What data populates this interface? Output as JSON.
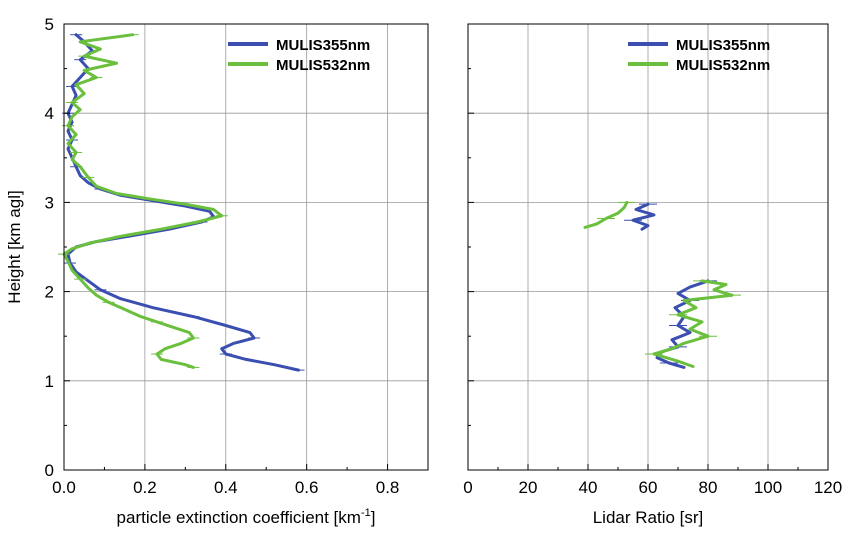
{
  "chart_data": [
    {
      "type": "line",
      "xlabel": "particle extinction coefficient [km",
      "xlabel_sup": "-1",
      "xlabel_end": "]",
      "ylabel": "Height [km agl]",
      "xlim": [
        0,
        0.9
      ],
      "ylim": [
        0,
        5
      ],
      "xticks": [
        "0.0",
        "0.2",
        "0.4",
        "0.6",
        "0.8"
      ],
      "xtick_values": [
        0,
        0.2,
        0.4,
        0.6,
        0.8
      ],
      "yticks": [
        "0",
        "1",
        "2",
        "3",
        "4",
        "5"
      ],
      "ytick_values": [
        0,
        1,
        2,
        3,
        4,
        5
      ],
      "grid": true,
      "legend_position": "top-right",
      "series": [
        {
          "name": "MULIS355nm",
          "color": "#3a4fb0",
          "points": [
            [
              0.58,
              1.12
            ],
            [
              0.52,
              1.18
            ],
            [
              0.45,
              1.24
            ],
            [
              0.4,
              1.3
            ],
            [
              0.39,
              1.36
            ],
            [
              0.42,
              1.42
            ],
            [
              0.47,
              1.48
            ],
            [
              0.46,
              1.54
            ],
            [
              0.4,
              1.62
            ],
            [
              0.32,
              1.72
            ],
            [
              0.22,
              1.82
            ],
            [
              0.14,
              1.92
            ],
            [
              0.09,
              2.02
            ],
            [
              0.06,
              2.12
            ],
            [
              0.03,
              2.22
            ],
            [
              0.015,
              2.32
            ],
            [
              0.01,
              2.42
            ],
            [
              0.03,
              2.5
            ],
            [
              0.08,
              2.56
            ],
            [
              0.16,
              2.62
            ],
            [
              0.26,
              2.7
            ],
            [
              0.34,
              2.78
            ],
            [
              0.37,
              2.84
            ],
            [
              0.36,
              2.9
            ],
            [
              0.3,
              2.96
            ],
            [
              0.22,
              3.02
            ],
            [
              0.14,
              3.08
            ],
            [
              0.09,
              3.15
            ],
            [
              0.06,
              3.22
            ],
            [
              0.04,
              3.3
            ],
            [
              0.03,
              3.4
            ],
            [
              0.02,
              3.5
            ],
            [
              0.01,
              3.6
            ],
            [
              0.02,
              3.7
            ],
            [
              0.01,
              3.8
            ],
            [
              0.02,
              3.9
            ],
            [
              0.01,
              4.0
            ],
            [
              0.02,
              4.1
            ],
            [
              0.03,
              4.2
            ],
            [
              0.02,
              4.3
            ],
            [
              0.04,
              4.4
            ],
            [
              0.06,
              4.5
            ],
            [
              0.04,
              4.6
            ],
            [
              0.07,
              4.7
            ],
            [
              0.05,
              4.8
            ],
            [
              0.03,
              4.88
            ]
          ]
        },
        {
          "name": "MULIS532nm",
          "color": "#6abf3c",
          "points": [
            [
              0.32,
              1.15
            ],
            [
              0.3,
              1.18
            ],
            [
              0.24,
              1.24
            ],
            [
              0.23,
              1.3
            ],
            [
              0.25,
              1.36
            ],
            [
              0.29,
              1.42
            ],
            [
              0.32,
              1.48
            ],
            [
              0.31,
              1.54
            ],
            [
              0.27,
              1.6
            ],
            [
              0.23,
              1.66
            ],
            [
              0.19,
              1.72
            ],
            [
              0.15,
              1.8
            ],
            [
              0.11,
              1.88
            ],
            [
              0.08,
              1.96
            ],
            [
              0.06,
              2.04
            ],
            [
              0.04,
              2.14
            ],
            [
              0.02,
              2.24
            ],
            [
              0.01,
              2.34
            ],
            [
              0.0,
              2.42
            ],
            [
              0.02,
              2.48
            ],
            [
              0.06,
              2.54
            ],
            [
              0.14,
              2.62
            ],
            [
              0.24,
              2.7
            ],
            [
              0.33,
              2.78
            ],
            [
              0.39,
              2.85
            ],
            [
              0.37,
              2.92
            ],
            [
              0.3,
              2.98
            ],
            [
              0.21,
              3.04
            ],
            [
              0.13,
              3.1
            ],
            [
              0.08,
              3.18
            ],
            [
              0.06,
              3.28
            ],
            [
              0.04,
              3.4
            ],
            [
              0.02,
              3.48
            ],
            [
              0.03,
              3.56
            ],
            [
              0.01,
              3.66
            ],
            [
              0.03,
              3.76
            ],
            [
              0.01,
              3.86
            ],
            [
              0.02,
              3.96
            ],
            [
              0.04,
              4.04
            ],
            [
              0.02,
              4.12
            ],
            [
              0.05,
              4.22
            ],
            [
              0.03,
              4.32
            ],
            [
              0.08,
              4.4
            ],
            [
              0.05,
              4.48
            ],
            [
              0.13,
              4.56
            ],
            [
              0.05,
              4.64
            ],
            [
              0.09,
              4.72
            ],
            [
              0.04,
              4.8
            ],
            [
              0.17,
              4.88
            ]
          ]
        }
      ]
    },
    {
      "type": "line",
      "xlabel": "Lidar Ratio [sr]",
      "xlim": [
        0,
        120
      ],
      "ylim": [
        0,
        5
      ],
      "xticks": [
        "0",
        "20",
        "40",
        "60",
        "80",
        "100",
        "120"
      ],
      "xtick_values": [
        0,
        20,
        40,
        60,
        80,
        100,
        120
      ],
      "ytick_values": [
        0,
        1,
        2,
        3,
        4,
        5
      ],
      "grid": true,
      "legend_position": "top-right",
      "series": [
        {
          "name": "MULIS355nm",
          "color": "#3a4fb0",
          "segments": [
            [
              [
                60,
                2.98
              ],
              [
                56,
                2.92
              ],
              [
                62,
                2.86
              ],
              [
                55,
                2.8
              ],
              [
                60,
                2.74
              ],
              [
                58,
                2.7
              ]
            ],
            [
              [
                80,
                2.12
              ],
              [
                74,
                2.05
              ],
              [
                70,
                1.98
              ],
              [
                74,
                1.9
              ],
              [
                69,
                1.82
              ],
              [
                72,
                1.72
              ],
              [
                70,
                1.62
              ],
              [
                74,
                1.54
              ],
              [
                68,
                1.46
              ],
              [
                70,
                1.38
              ],
              [
                64,
                1.32
              ],
              [
                63,
                1.26
              ],
              [
                67,
                1.2
              ],
              [
                72,
                1.15
              ]
            ]
          ]
        },
        {
          "name": "MULIS532nm",
          "color": "#6abf3c",
          "segments": [
            [
              [
                53,
                3.0
              ],
              [
                52,
                2.94
              ],
              [
                50,
                2.88
              ],
              [
                46,
                2.82
              ],
              [
                43,
                2.76
              ],
              [
                39,
                2.72
              ]
            ],
            [
              [
                78,
                2.12
              ],
              [
                86,
                2.08
              ],
              [
                82,
                2.02
              ],
              [
                88,
                1.96
              ],
              [
                72,
                1.9
              ],
              [
                76,
                1.82
              ],
              [
                70,
                1.74
              ],
              [
                78,
                1.66
              ],
              [
                74,
                1.58
              ],
              [
                80,
                1.5
              ],
              [
                72,
                1.42
              ],
              [
                68,
                1.36
              ],
              [
                62,
                1.3
              ],
              [
                70,
                1.22
              ],
              [
                75,
                1.16
              ]
            ]
          ]
        }
      ]
    }
  ]
}
